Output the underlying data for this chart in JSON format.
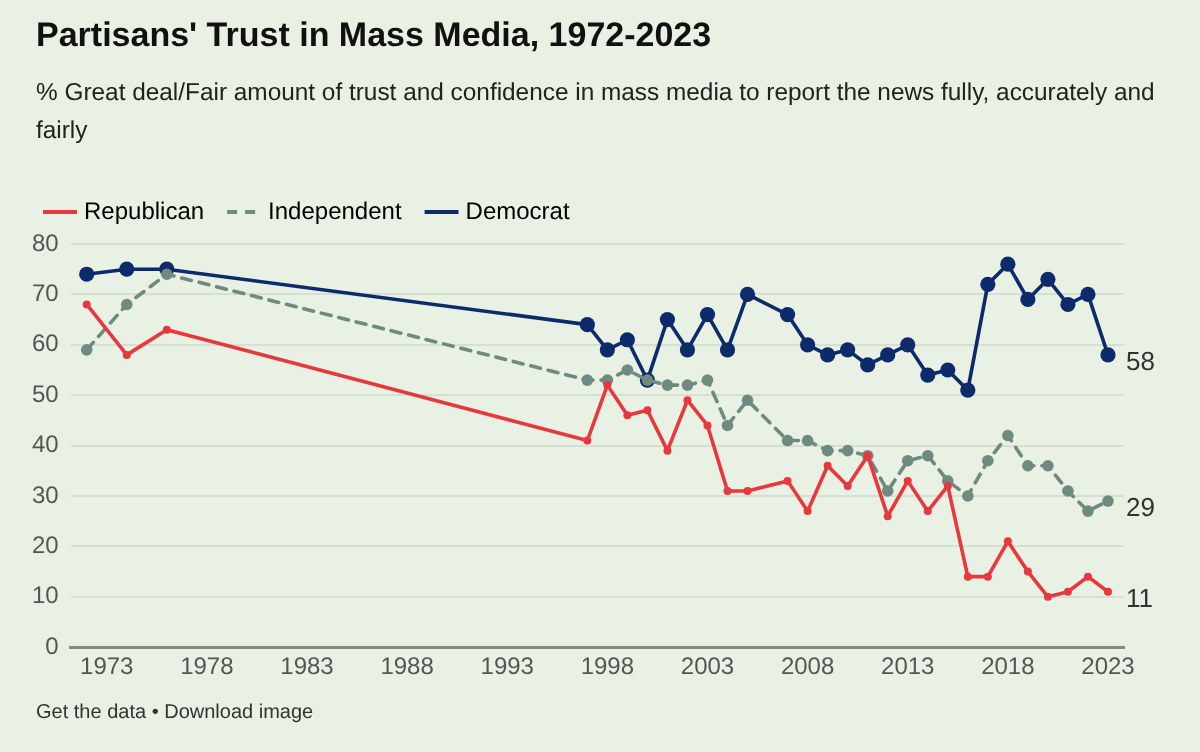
{
  "chart_data": {
    "type": "line",
    "title": "Partisans' Trust in Mass Media, 1972-2023",
    "subtitle": "% Great deal/Fair amount of trust and confidence in mass media to report the news fully, accurately and fairly",
    "x": [
      1972,
      1974,
      1976,
      1997,
      1998,
      1999,
      2000,
      2001,
      2002,
      2003,
      2004,
      2005,
      2007,
      2008,
      2009,
      2010,
      2011,
      2012,
      2013,
      2014,
      2015,
      2016,
      2017,
      2018,
      2019,
      2020,
      2021,
      2022,
      2023
    ],
    "series": [
      {
        "name": "Republican",
        "color": "#e8383d",
        "line_style": "solid",
        "values": [
          68,
          58,
          63,
          41,
          52,
          46,
          47,
          39,
          49,
          44,
          31,
          31,
          33,
          27,
          36,
          32,
          38,
          26,
          33,
          27,
          32,
          14,
          14,
          21,
          15,
          10,
          11,
          14,
          11
        ],
        "value_labels": [
          null,
          null,
          null,
          null,
          null,
          null,
          null,
          null,
          null,
          null,
          null,
          null,
          null,
          null,
          null,
          null,
          null,
          null,
          null,
          null,
          null,
          null,
          null,
          null,
          null,
          null,
          null,
          null,
          "11"
        ]
      },
      {
        "name": "Independent",
        "color": "#6f8a80",
        "line_style": "dashed",
        "values": [
          59,
          68,
          74,
          53,
          53,
          55,
          53,
          52,
          52,
          53,
          44,
          49,
          41,
          41,
          39,
          39,
          38,
          31,
          37,
          38,
          33,
          30,
          37,
          42,
          36,
          36,
          31,
          27,
          29
        ],
        "value_labels": [
          null,
          null,
          null,
          null,
          null,
          null,
          null,
          null,
          null,
          null,
          null,
          null,
          null,
          null,
          null,
          null,
          null,
          null,
          null,
          null,
          null,
          null,
          null,
          null,
          null,
          null,
          null,
          null,
          "29"
        ]
      },
      {
        "name": "Democrat",
        "color": "#0d2a6b",
        "line_style": "solid",
        "values": [
          74,
          75,
          75,
          64,
          59,
          61,
          53,
          65,
          59,
          66,
          59,
          70,
          66,
          60,
          58,
          59,
          56,
          58,
          60,
          54,
          55,
          51,
          72,
          76,
          69,
          73,
          68,
          70,
          58
        ],
        "value_labels": [
          null,
          null,
          null,
          null,
          null,
          null,
          null,
          null,
          null,
          null,
          null,
          null,
          null,
          null,
          null,
          null,
          null,
          null,
          null,
          null,
          null,
          null,
          null,
          null,
          null,
          null,
          null,
          null,
          "58"
        ]
      }
    ],
    "xlim": [
      1971.2,
      2023.8
    ],
    "xticks": [
      1973,
      1978,
      1983,
      1988,
      1993,
      1998,
      2003,
      2008,
      2013,
      2018,
      2023
    ],
    "ylim": [
      0,
      80
    ],
    "yticks": [
      0,
      10,
      20,
      30,
      40,
      50,
      60,
      70,
      80
    ],
    "grid": "y",
    "legend": "top left",
    "marker": "circle",
    "annotations": [
      "Get the data • Download image"
    ]
  }
}
